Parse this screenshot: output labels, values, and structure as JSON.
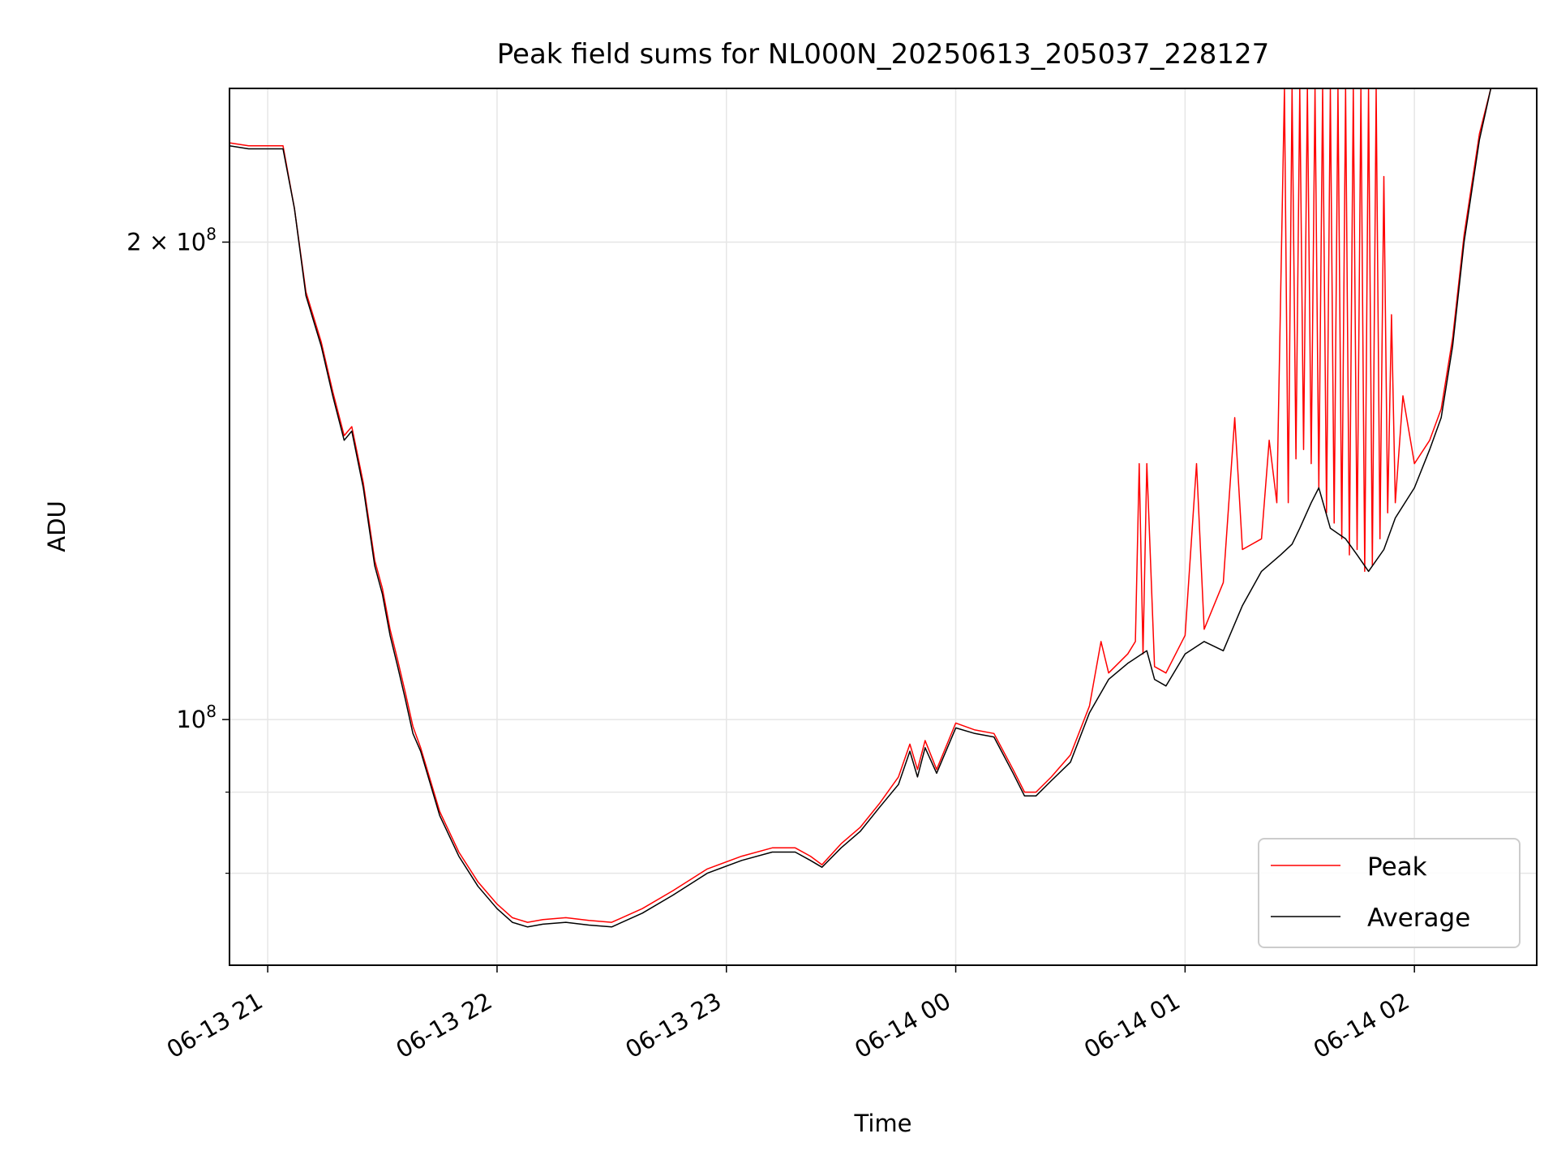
{
  "chart_data": {
    "type": "line",
    "title": "Peak field sums for NL000N_20250613_205037_228127",
    "xlabel": "Time",
    "ylabel": "ADU",
    "x_range": [
      "2025-06-13 20:50",
      "2025-06-14 02:32"
    ],
    "y_range": [
      70000000,
      250000000
    ],
    "y_scale": "log",
    "grid": true,
    "legend_position": "lower right",
    "x_ticks": [
      {
        "time": "2025-06-13 21:00",
        "label": "06-13 21"
      },
      {
        "time": "2025-06-13 22:00",
        "label": "06-13 22"
      },
      {
        "time": "2025-06-13 23:00",
        "label": "06-13 23"
      },
      {
        "time": "2025-06-14 00:00",
        "label": "06-14 00"
      },
      {
        "time": "2025-06-14 01:00",
        "label": "06-14 01"
      },
      {
        "time": "2025-06-14 02:00",
        "label": "06-14 02"
      }
    ],
    "y_ticks": [
      {
        "value": 100000000,
        "base": "10",
        "exp": "8",
        "mult": ""
      },
      {
        "value": 200000000,
        "base": "10",
        "exp": "8",
        "mult": "2 × "
      }
    ],
    "y_minor_ticks": [
      80000000,
      90000000
    ],
    "series": [
      {
        "name": "Average",
        "color": "#000000",
        "x": [
          "2025-06-13 20:50",
          "2025-06-13 20:55",
          "2025-06-13 21:04",
          "2025-06-13 21:07",
          "2025-06-13 21:10",
          "2025-06-13 21:14",
          "2025-06-13 21:17",
          "2025-06-13 21:20",
          "2025-06-13 21:22",
          "2025-06-13 21:25",
          "2025-06-13 21:28",
          "2025-06-13 21:30",
          "2025-06-13 21:32",
          "2025-06-13 21:34",
          "2025-06-13 21:36",
          "2025-06-13 21:38",
          "2025-06-13 21:40",
          "2025-06-13 21:45",
          "2025-06-13 21:50",
          "2025-06-13 21:55",
          "2025-06-13 22:00",
          "2025-06-13 22:04",
          "2025-06-13 22:08",
          "2025-06-13 22:12",
          "2025-06-13 22:18",
          "2025-06-13 22:24",
          "2025-06-13 22:30",
          "2025-06-13 22:38",
          "2025-06-13 22:46",
          "2025-06-13 22:55",
          "2025-06-13 23:04",
          "2025-06-13 23:12",
          "2025-06-13 23:18",
          "2025-06-13 23:22",
          "2025-06-13 23:25",
          "2025-06-13 23:30",
          "2025-06-13 23:35",
          "2025-06-13 23:40",
          "2025-06-13 23:45",
          "2025-06-13 23:48",
          "2025-06-13 23:50",
          "2025-06-13 23:52",
          "2025-06-13 23:55",
          "2025-06-14 00:00",
          "2025-06-14 00:05",
          "2025-06-14 00:10",
          "2025-06-14 00:15",
          "2025-06-14 00:18",
          "2025-06-14 00:21",
          "2025-06-14 00:25",
          "2025-06-14 00:30",
          "2025-06-14 00:35",
          "2025-06-14 00:40",
          "2025-06-14 00:45",
          "2025-06-14 00:50",
          "2025-06-14 00:52",
          "2025-06-14 00:55",
          "2025-06-14 01:00",
          "2025-06-14 01:05",
          "2025-06-14 01:10",
          "2025-06-14 01:15",
          "2025-06-14 01:20",
          "2025-06-14 01:25",
          "2025-06-14 01:28",
          "2025-06-14 01:30",
          "2025-06-14 01:33",
          "2025-06-14 01:35",
          "2025-06-14 01:38",
          "2025-06-14 01:42",
          "2025-06-14 01:45",
          "2025-06-14 01:48",
          "2025-06-14 01:52",
          "2025-06-14 01:55",
          "2025-06-14 02:00",
          "2025-06-14 02:04",
          "2025-06-14 02:07",
          "2025-06-14 02:10",
          "2025-06-14 02:13",
          "2025-06-14 02:17",
          "2025-06-14 02:20"
        ],
        "y": [
          230000000,
          229000000,
          229000000,
          210000000,
          185000000,
          172000000,
          160000000,
          150000000,
          152000000,
          140000000,
          125000000,
          120000000,
          113000000,
          108000000,
          103000000,
          98000000,
          95500000,
          87000000,
          82000000,
          78500000,
          76000000,
          74500000,
          74000000,
          74300000,
          74500000,
          74200000,
          74000000,
          75500000,
          77500000,
          80000000,
          81500000,
          82500000,
          82500000,
          81500000,
          80700000,
          83000000,
          85000000,
          88000000,
          91000000,
          95500000,
          92000000,
          96000000,
          92500000,
          98800000,
          98000000,
          97500000,
          92500000,
          89500000,
          89500000,
          91500000,
          94000000,
          101000000,
          106000000,
          108500000,
          110500000,
          106000000,
          105000000,
          110000000,
          112000000,
          110500000,
          118000000,
          124000000,
          127000000,
          129000000,
          132000000,
          137000000,
          140000000,
          132000000,
          130000000,
          127000000,
          124000000,
          128000000,
          134000000,
          140000000,
          148000000,
          155000000,
          172000000,
          200000000,
          232000000,
          251000000
        ]
      },
      {
        "name": "Peak",
        "color": "#ff0000",
        "x": [
          "2025-06-13 20:50",
          "2025-06-13 20:55",
          "2025-06-13 21:04",
          "2025-06-13 21:07",
          "2025-06-13 21:10",
          "2025-06-13 21:14",
          "2025-06-13 21:17",
          "2025-06-13 21:20",
          "2025-06-13 21:22",
          "2025-06-13 21:25",
          "2025-06-13 21:28",
          "2025-06-13 21:30",
          "2025-06-13 21:32",
          "2025-06-13 21:34",
          "2025-06-13 21:36",
          "2025-06-13 21:38",
          "2025-06-13 21:40",
          "2025-06-13 21:45",
          "2025-06-13 21:50",
          "2025-06-13 21:55",
          "2025-06-13 22:00",
          "2025-06-13 22:04",
          "2025-06-13 22:08",
          "2025-06-13 22:12",
          "2025-06-13 22:18",
          "2025-06-13 22:24",
          "2025-06-13 22:30",
          "2025-06-13 22:38",
          "2025-06-13 22:46",
          "2025-06-13 22:55",
          "2025-06-13 23:04",
          "2025-06-13 23:12",
          "2025-06-13 23:18",
          "2025-06-13 23:22",
          "2025-06-13 23:25",
          "2025-06-13 23:30",
          "2025-06-13 23:35",
          "2025-06-13 23:40",
          "2025-06-13 23:45",
          "2025-06-13 23:48",
          "2025-06-13 23:50",
          "2025-06-13 23:52",
          "2025-06-13 23:55",
          "2025-06-14 00:00",
          "2025-06-14 00:05",
          "2025-06-14 00:10",
          "2025-06-14 00:15",
          "2025-06-14 00:18",
          "2025-06-14 00:21",
          "2025-06-14 00:25",
          "2025-06-14 00:30",
          "2025-06-14 00:35",
          "2025-06-14 00:38",
          "2025-06-14 00:40",
          "2025-06-14 00:45",
          "2025-06-14 00:47",
          "2025-06-14 00:48",
          "2025-06-14 00:49",
          "2025-06-14 00:50",
          "2025-06-14 00:52",
          "2025-06-14 00:55",
          "2025-06-14 01:00",
          "2025-06-14 01:03",
          "2025-06-14 01:05",
          "2025-06-14 01:10",
          "2025-06-14 01:13",
          "2025-06-14 01:15",
          "2025-06-14 01:20",
          "2025-06-14 01:22",
          "2025-06-14 01:24",
          "2025-06-14 01:26",
          "2025-06-14 01:27",
          "2025-06-14 01:28",
          "2025-06-14 01:29",
          "2025-06-14 01:30",
          "2025-06-14 01:31",
          "2025-06-14 01:32",
          "2025-06-14 01:33",
          "2025-06-14 01:34",
          "2025-06-14 01:35",
          "2025-06-14 01:36",
          "2025-06-14 01:37",
          "2025-06-14 01:38",
          "2025-06-14 01:39",
          "2025-06-14 01:40",
          "2025-06-14 01:41",
          "2025-06-14 01:42",
          "2025-06-14 01:43",
          "2025-06-14 01:44",
          "2025-06-14 01:45",
          "2025-06-14 01:46",
          "2025-06-14 01:47",
          "2025-06-14 01:48",
          "2025-06-14 01:49",
          "2025-06-14 01:50",
          "2025-06-14 01:51",
          "2025-06-14 01:52",
          "2025-06-14 01:53",
          "2025-06-14 01:54",
          "2025-06-14 01:55",
          "2025-06-14 01:57",
          "2025-06-14 02:00",
          "2025-06-14 02:04",
          "2025-06-14 02:07",
          "2025-06-14 02:10",
          "2025-06-14 02:13",
          "2025-06-14 02:17",
          "2025-06-14 02:20"
        ],
        "y": [
          231000000,
          230000000,
          230000000,
          210000000,
          186000000,
          173000000,
          161000000,
          151000000,
          153000000,
          141000000,
          126000000,
          121000000,
          114000000,
          109000000,
          104000000,
          99000000,
          96000000,
          87500000,
          82500000,
          79000000,
          76500000,
          75000000,
          74500000,
          74800000,
          75000000,
          74700000,
          74500000,
          76000000,
          78000000,
          80500000,
          82000000,
          83000000,
          83000000,
          82000000,
          81000000,
          83500000,
          85500000,
          88500000,
          92000000,
          96500000,
          93000000,
          97000000,
          93000000,
          99500000,
          98500000,
          98000000,
          93000000,
          90000000,
          90000000,
          92000000,
          95000000,
          102000000,
          112000000,
          107000000,
          110000000,
          112000000,
          145000000,
          110000000,
          145000000,
          108000000,
          107000000,
          113000000,
          145000000,
          114000000,
          122000000,
          155000000,
          128000000,
          130000000,
          150000000,
          137000000,
          250000000,
          137000000,
          250000000,
          146000000,
          250000000,
          148000000,
          250000000,
          145000000,
          250000000,
          140000000,
          250000000,
          135000000,
          250000000,
          133000000,
          250000000,
          130000000,
          250000000,
          127000000,
          250000000,
          128000000,
          250000000,
          124000000,
          250000000,
          125000000,
          250000000,
          130000000,
          220000000,
          135000000,
          180000000,
          137000000,
          160000000,
          145000000,
          150000000,
          157000000,
          174000000,
          202000000,
          234000000,
          252000000
        ]
      }
    ]
  }
}
